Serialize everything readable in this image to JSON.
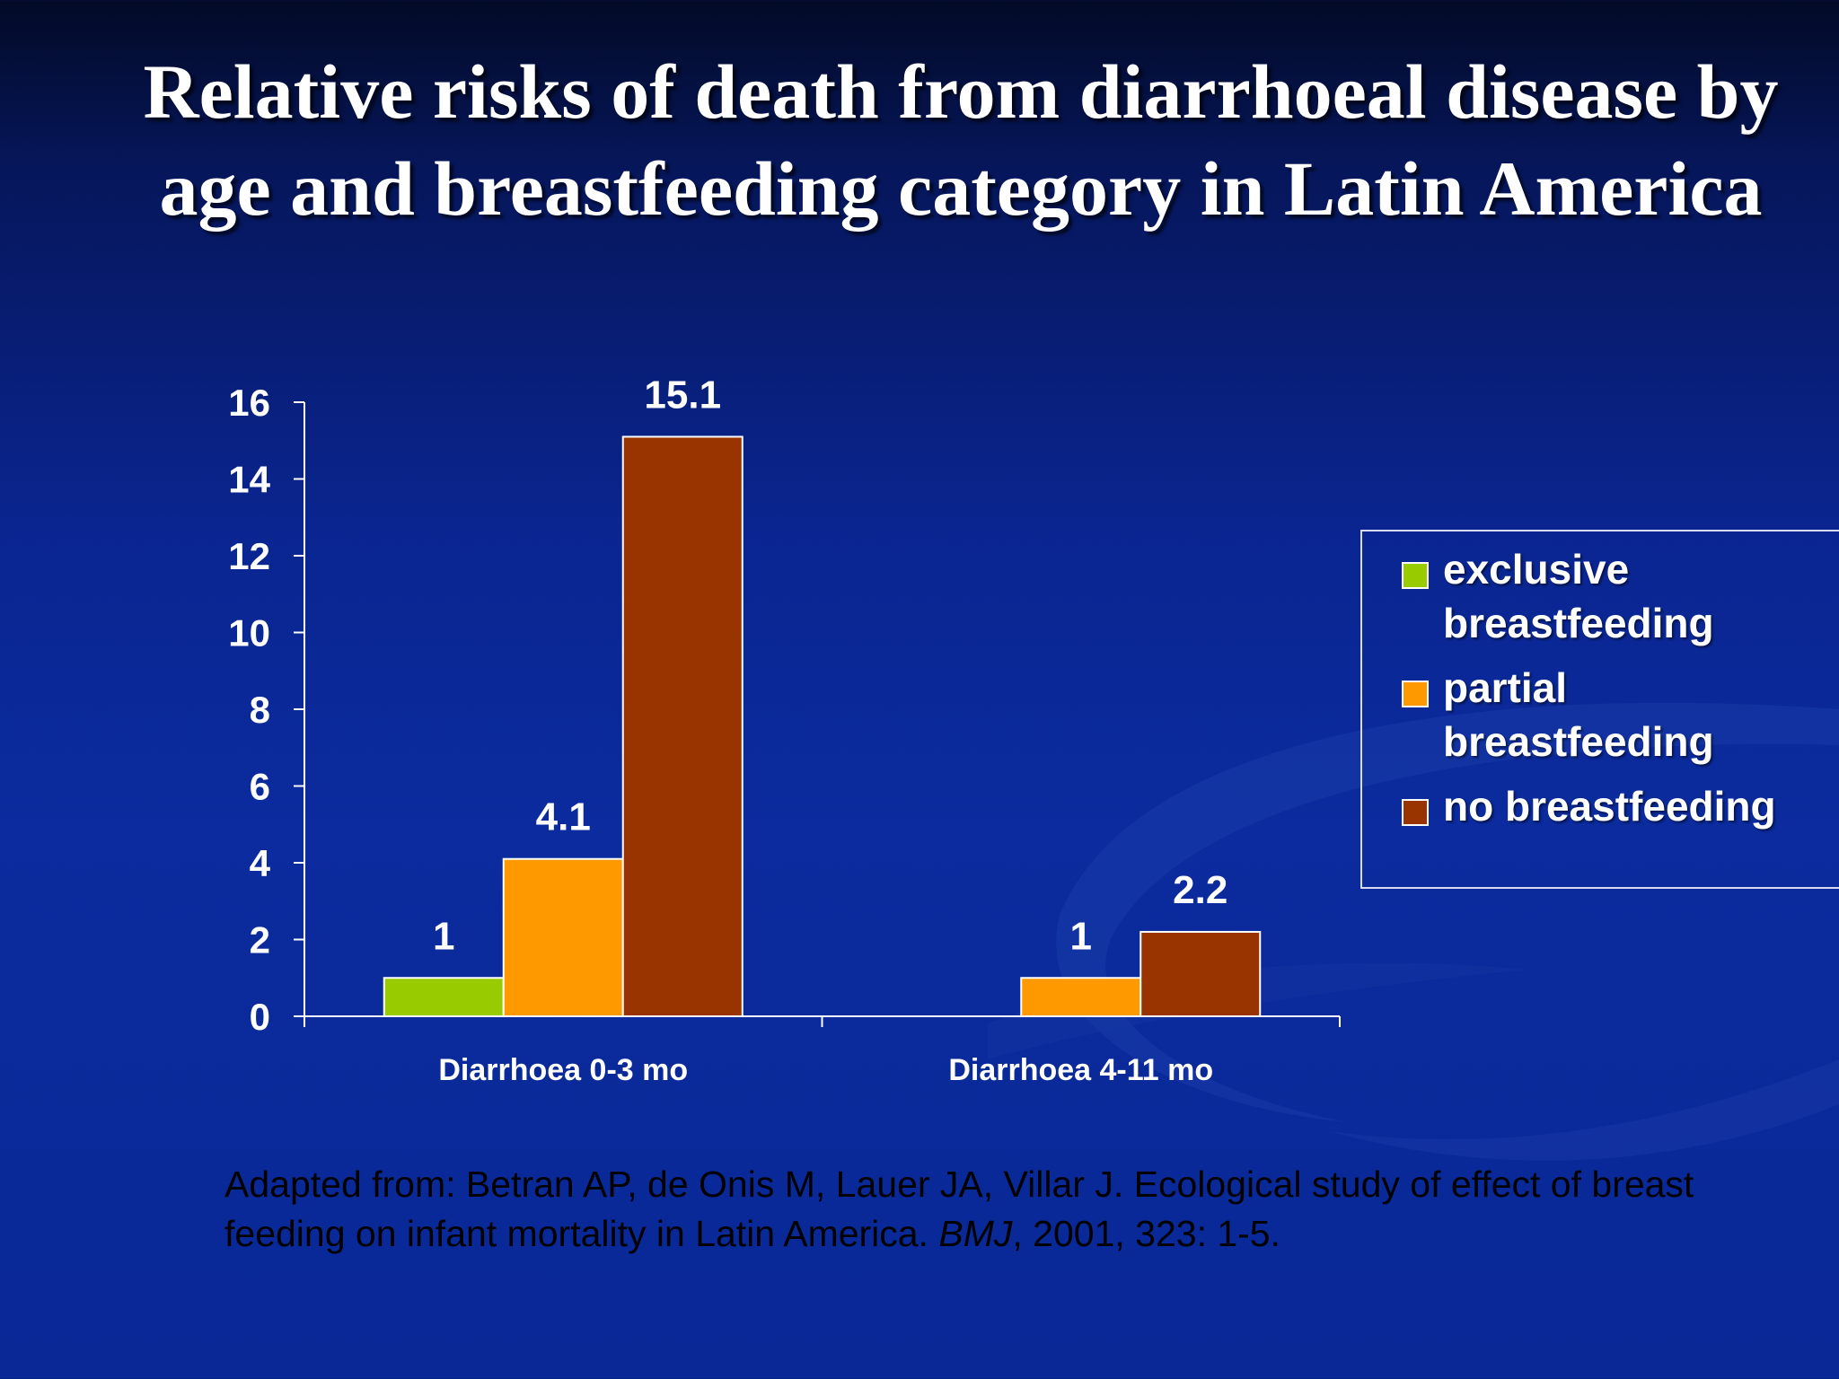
{
  "slide": {
    "title": "Relative risks of death from diarrhoeal disease by age and breastfeeding category in Latin America",
    "citation": {
      "before": "Adapted from: Betran AP, de Onis M, Lauer JA,  Villar J. Ecological study of effect of breast feeding on infant mortality in Latin America. ",
      "journal": "BMJ",
      "after": ", 2001, 323: 1-5."
    }
  },
  "chart_data": {
    "type": "bar",
    "title": "Relative risks of death from diarrhoeal disease by age and breastfeeding category in Latin America",
    "xlabel": "",
    "ylabel": "",
    "ylim": [
      0,
      16
    ],
    "yticks": [
      0,
      2,
      4,
      6,
      8,
      10,
      12,
      14,
      16
    ],
    "grid": false,
    "legend_position": "right",
    "categories": [
      "Diarrhoea 0-3 mo",
      "Diarrhoea 4-11 mo"
    ],
    "series": [
      {
        "name": "exclusive breastfeeding",
        "color": "#99cc00",
        "values": [
          1,
          null
        ]
      },
      {
        "name": "partial breastfeeding",
        "color": "#ff9900",
        "values": [
          4.1,
          1
        ]
      },
      {
        "name": "no breastfeeding",
        "color": "#993300",
        "values": [
          15.1,
          2.2
        ]
      }
    ]
  }
}
